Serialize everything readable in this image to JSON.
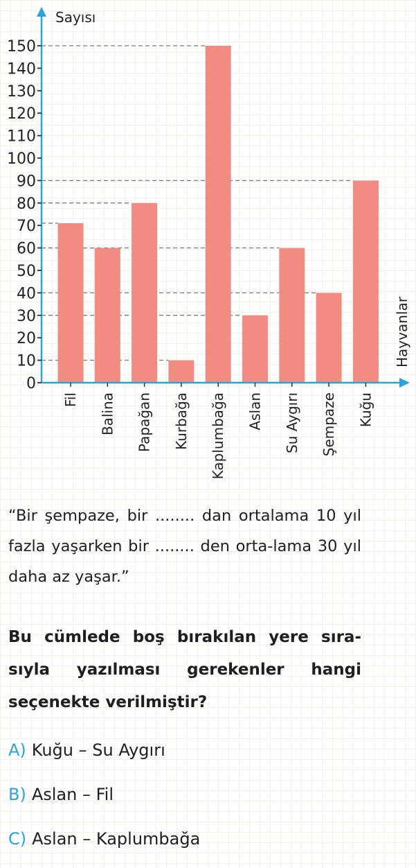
{
  "chart_data": {
    "type": "bar",
    "ylabel": "Sayısı",
    "xlabel": "Hayvanlar",
    "categories": [
      "Fil",
      "Balina",
      "Papağan",
      "Kurbağa",
      "Kaplumbağa",
      "Aslan",
      "Su Aygırı",
      "Şempaze",
      "Kuğu"
    ],
    "values": [
      71,
      60,
      80,
      10,
      150,
      30,
      60,
      40,
      90
    ],
    "ylim": [
      0,
      150
    ],
    "yticks": [
      0,
      10,
      20,
      30,
      40,
      50,
      60,
      70,
      80,
      90,
      100,
      110,
      120,
      130,
      140,
      150
    ],
    "bar_color": "#f28b82",
    "axis_color": "#29a3dd",
    "reference_lines": true,
    "grid": false
  },
  "question": {
    "quote": "“Bir şempaze, bir ........ dan ortalama 10 yıl fazla yaşarken bir ........ den orta-lama 30 yıl daha az yaşar.”",
    "prompt": "Bu cümlede boş bırakılan yere sıra-sıyla yazılması gerekenler hangi seçenekte verilmiştir?",
    "options": [
      {
        "letter": "A)",
        "text": "Kuğu – Su Aygırı"
      },
      {
        "letter": "B)",
        "text": "Aslan – Fil"
      },
      {
        "letter": "C)",
        "text": "Aslan – Kaplumbağa"
      }
    ]
  },
  "colors": {
    "accent": "#29a3dd",
    "bar": "#f28b82"
  }
}
